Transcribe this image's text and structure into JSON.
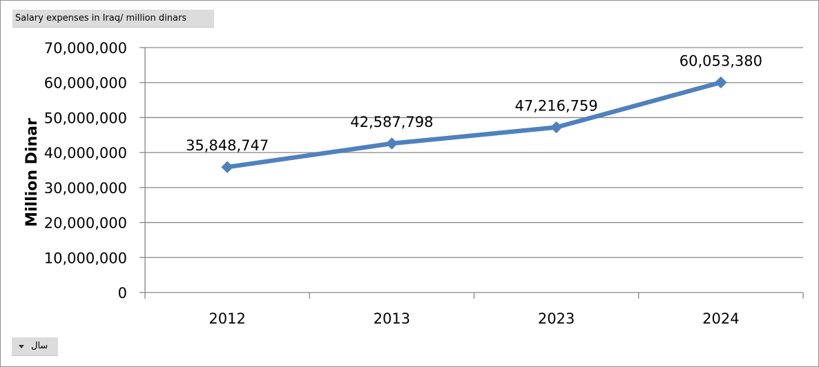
{
  "filter_button": {
    "label": "Salary expenses in Iraq/ million dinars"
  },
  "axis_field_button": {
    "label": "سال",
    "icon": "dropdown-arrow-icon"
  },
  "chart_data": {
    "type": "line",
    "categories": [
      "2012",
      "2013",
      "2023",
      "2024"
    ],
    "series": [
      {
        "values": [
          35848747,
          42587798,
          47216759,
          60053380
        ],
        "data_labels": [
          "35,848,747",
          "42,587,798",
          "47,216,759",
          "60,053,380"
        ],
        "color": "#4f81bd",
        "marker": "diamond"
      }
    ],
    "ylabel": "Million Dinar",
    "xlabel": "",
    "ylim": [
      0,
      70000000
    ],
    "yticks": [
      0,
      10000000,
      20000000,
      30000000,
      40000000,
      50000000,
      60000000,
      70000000
    ],
    "ytick_labels": [
      "0",
      "10,000,000",
      "20,000,000",
      "30,000,000",
      "40,000,000",
      "50,000,000",
      "60,000,000",
      "70,000,000"
    ],
    "grid": true,
    "legend": "none"
  },
  "colors": {
    "gridline": "#868686",
    "axis": "#868686",
    "line": "#4f81bd"
  }
}
